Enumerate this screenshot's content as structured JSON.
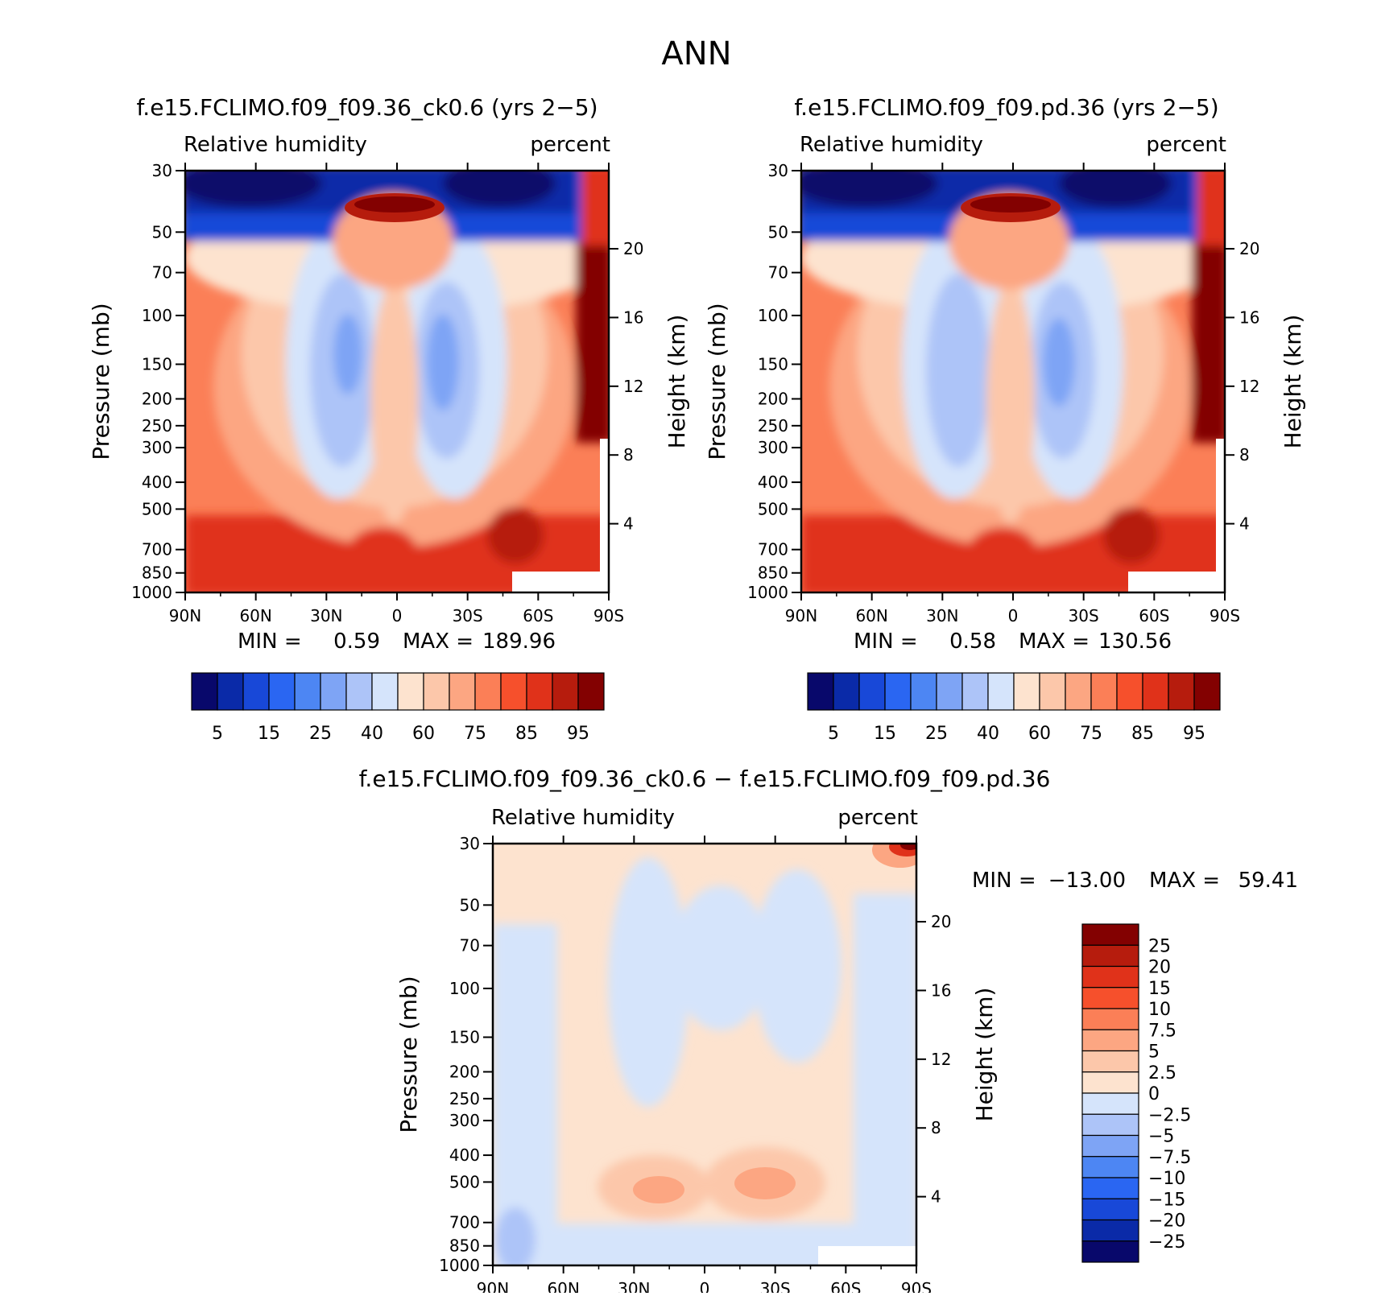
{
  "page": {
    "title": "ANN"
  },
  "colors": {
    "abs_palette": [
      "#08086b",
      "#0a2aa8",
      "#1848d8",
      "#2a66f2",
      "#4d86f3",
      "#7ea4f5",
      "#adc4f8",
      "#d5e4fb",
      "#fde3cf",
      "#fcc7aa",
      "#fca682",
      "#fb7f57",
      "#f6502c",
      "#e0321a",
      "#b61c0d",
      "#830101"
    ],
    "diff_palette": [
      "#08086b",
      "#0a2aa8",
      "#1848d8",
      "#2a66f2",
      "#4d86f3",
      "#7ea4f5",
      "#adc4f8",
      "#d5e4fb",
      "#fde3cf",
      "#fcc7aa",
      "#fca682",
      "#fb7f57",
      "#f6502c",
      "#e0321a",
      "#b61c0d",
      "#830101"
    ]
  },
  "chart_data": [
    {
      "type": "heatmap",
      "id": "panel1",
      "title": "f.e15.FCLIMO.f09_f09.36_ck0.6 (yrs 2−5)",
      "left_label": "Relative humidity",
      "right_label": "percent",
      "ylabel": "Pressure (mb)",
      "y2label": "Height (km)",
      "xticks": [
        "90N",
        "60N",
        "30N",
        "0",
        "30S",
        "60S",
        "90S"
      ],
      "xlim": [
        90,
        -90
      ],
      "yticks": [
        "30",
        "50",
        "70",
        "100",
        "150",
        "200",
        "250",
        "300",
        "400",
        "500",
        "700",
        "850",
        "1000"
      ],
      "yscale": "log",
      "ylim": [
        30,
        1000
      ],
      "height_ticks": [
        "20",
        "16",
        "12",
        "8",
        "4"
      ],
      "stats": {
        "min_label": "MIN =",
        "min_value": "0.59",
        "max_label": "MAX =",
        "max_value": "189.96"
      },
      "colorbar_labels": [
        "5",
        "15",
        "25",
        "40",
        "60",
        "75",
        "85",
        "95"
      ],
      "palette": "abs_palette"
    },
    {
      "type": "heatmap",
      "id": "panel2",
      "title": "f.e15.FCLIMO.f09_f09.pd.36 (yrs 2−5)",
      "left_label": "Relative humidity",
      "right_label": "percent",
      "ylabel": "Pressure (mb)",
      "y2label": "Height (km)",
      "xticks": [
        "90N",
        "60N",
        "30N",
        "0",
        "30S",
        "60S",
        "90S"
      ],
      "xlim": [
        90,
        -90
      ],
      "yticks": [
        "30",
        "50",
        "70",
        "100",
        "150",
        "200",
        "250",
        "300",
        "400",
        "500",
        "700",
        "850",
        "1000"
      ],
      "yscale": "log",
      "ylim": [
        30,
        1000
      ],
      "height_ticks": [
        "20",
        "16",
        "12",
        "8",
        "4"
      ],
      "stats": {
        "min_label": "MIN =",
        "min_value": "0.58",
        "max_label": "MAX =",
        "max_value": "130.56"
      },
      "colorbar_labels": [
        "5",
        "15",
        "25",
        "40",
        "60",
        "75",
        "85",
        "95"
      ],
      "palette": "abs_palette"
    },
    {
      "type": "heatmap",
      "id": "panel3",
      "title": "f.e15.FCLIMO.f09_f09.36_ck0.6 − f.e15.FCLIMO.f09_f09.pd.36",
      "left_label": "Relative humidity",
      "right_label": "percent",
      "ylabel": "Pressure (mb)",
      "y2label": "Height (km)",
      "xticks": [
        "90N",
        "60N",
        "30N",
        "0",
        "30S",
        "60S",
        "90S"
      ],
      "xlim": [
        90,
        -90
      ],
      "yticks": [
        "30",
        "50",
        "70",
        "100",
        "150",
        "200",
        "250",
        "300",
        "400",
        "500",
        "700",
        "850",
        "1000"
      ],
      "yscale": "log",
      "ylim": [
        30,
        1000
      ],
      "height_ticks": [
        "20",
        "16",
        "12",
        "8",
        "4"
      ],
      "stats": {
        "min_label": "MIN =",
        "min_value": "−13.00",
        "max_label": "MAX =",
        "max_value": "59.41"
      },
      "colorbar_labels": [
        "25",
        "20",
        "15",
        "10",
        "7.5",
        "5",
        "2.5",
        "0",
        "−2.5",
        "−5",
        "−7.5",
        "−10",
        "−15",
        "−20",
        "−25"
      ],
      "palette": "diff_palette"
    }
  ]
}
